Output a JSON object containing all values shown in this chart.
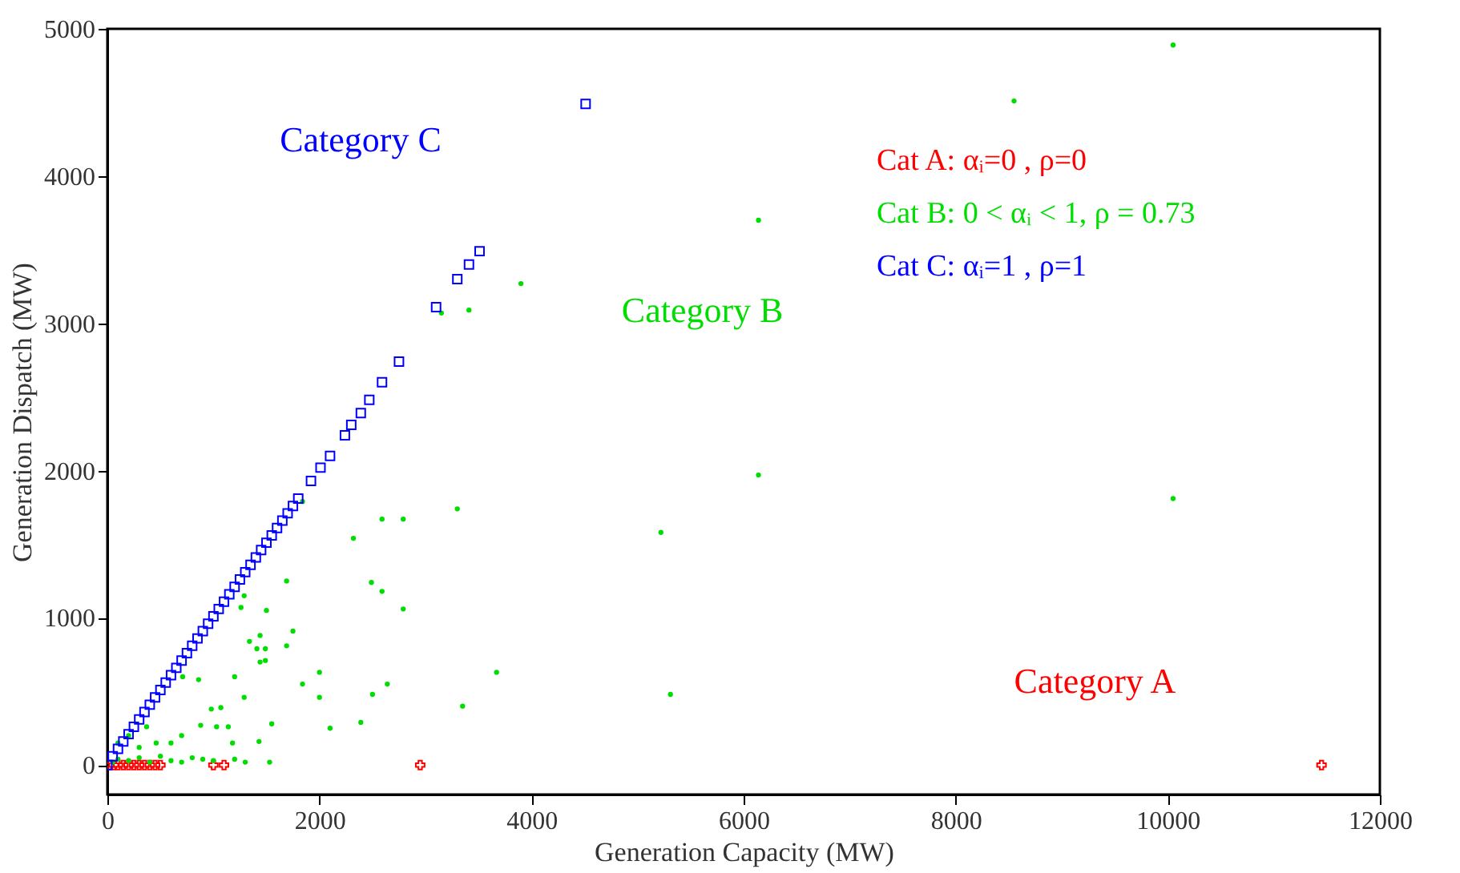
{
  "chart_data": {
    "type": "scatter",
    "xlabel": "Generation Capacity (MW)",
    "ylabel": "Generation Dispatch (MW)",
    "xlim": [
      0,
      12000
    ],
    "xticks": [
      0,
      2000,
      4000,
      6000,
      8000,
      10000,
      12000
    ],
    "ylim": [
      -200,
      5000
    ],
    "yticks": [
      0,
      1000,
      2000,
      3000,
      4000,
      5000
    ],
    "grid": false,
    "legend": "top right",
    "annotations": [
      "Category A",
      "Category B",
      "Category C"
    ],
    "series": [
      {
        "name": "Cat A: αᵢ=0 , ρ=0",
        "color": "#ff0000",
        "marker": "cross",
        "x": [
          20,
          60,
          100,
          150,
          200,
          250,
          300,
          350,
          400,
          450,
          500,
          1000,
          1100,
          2950,
          11450
        ],
        "values": [
          0,
          0,
          0,
          0,
          0,
          0,
          0,
          0,
          0,
          0,
          0,
          0,
          0,
          0,
          0
        ]
      },
      {
        "name": "Cat B: 0 < αᵢ < 1, ρ = 0.73",
        "color": "#00dd00",
        "marker": "circle",
        "x": [
          2590,
          2790,
          3300,
          2320,
          2490,
          2590,
          2790,
          1750,
          1690,
          3670,
          2000,
          1840,
          2640,
          2500,
          2000,
          3350,
          2390,
          1550,
          2100,
          1290,
          1200,
          980,
          1070,
          1030,
          1140,
          880,
          1440,
          1340,
          1490,
          1410,
          1490,
          1440,
          1690,
          1500,
          1260,
          1290,
          710,
          860,
          1430,
          1180,
          1530,
          460,
          370,
          1840,
          3900,
          3410,
          3150,
          10050,
          8550,
          6140,
          6140,
          5220,
          10050,
          5310,
          50,
          100,
          200,
          300,
          400,
          500,
          600,
          700,
          800,
          900,
          1000,
          1200,
          1300,
          100,
          200,
          300,
          600,
          700
        ],
        "values": [
          1670,
          1670,
          1740,
          1540,
          1240,
          1180,
          1060,
          910,
          810,
          630,
          630,
          550,
          550,
          480,
          460,
          400,
          290,
          280,
          250,
          460,
          600,
          380,
          390,
          260,
          260,
          270,
          880,
          840,
          790,
          790,
          710,
          700,
          1250,
          1050,
          1070,
          1150,
          600,
          580,
          160,
          150,
          20,
          150,
          260,
          1790,
          3270,
          3090,
          3070,
          4890,
          4510,
          3700,
          1970,
          1580,
          1810,
          480,
          20,
          40,
          30,
          50,
          20,
          60,
          30,
          20,
          50,
          40,
          30,
          40,
          20,
          150,
          200,
          120,
          150,
          200
        ]
      },
      {
        "name": "Cat C: αᵢ=1 , ρ=1",
        "color": "#0000ff",
        "marker": "square",
        "x": [
          0,
          50,
          100,
          150,
          200,
          250,
          300,
          350,
          400,
          450,
          500,
          550,
          600,
          650,
          700,
          750,
          800,
          850,
          900,
          950,
          1000,
          1050,
          1100,
          1150,
          1200,
          1250,
          1300,
          1350,
          1400,
          1450,
          1500,
          1550,
          1600,
          1650,
          1700,
          1750,
          1800,
          1920,
          2010,
          2100,
          2240,
          2300,
          2390,
          2470,
          2590,
          2750,
          3100,
          3300,
          3410,
          3510,
          4510
        ],
        "values": [
          0,
          60,
          110,
          160,
          210,
          260,
          310,
          360,
          410,
          460,
          510,
          560,
          610,
          660,
          710,
          760,
          810,
          860,
          910,
          960,
          1010,
          1060,
          1110,
          1160,
          1210,
          1260,
          1310,
          1360,
          1410,
          1460,
          1510,
          1560,
          1610,
          1660,
          1710,
          1760,
          1810,
          1930,
          2020,
          2100,
          2240,
          2310,
          2390,
          2480,
          2600,
          2740,
          3110,
          3300,
          3400,
          3490,
          4490
        ]
      }
    ]
  }
}
